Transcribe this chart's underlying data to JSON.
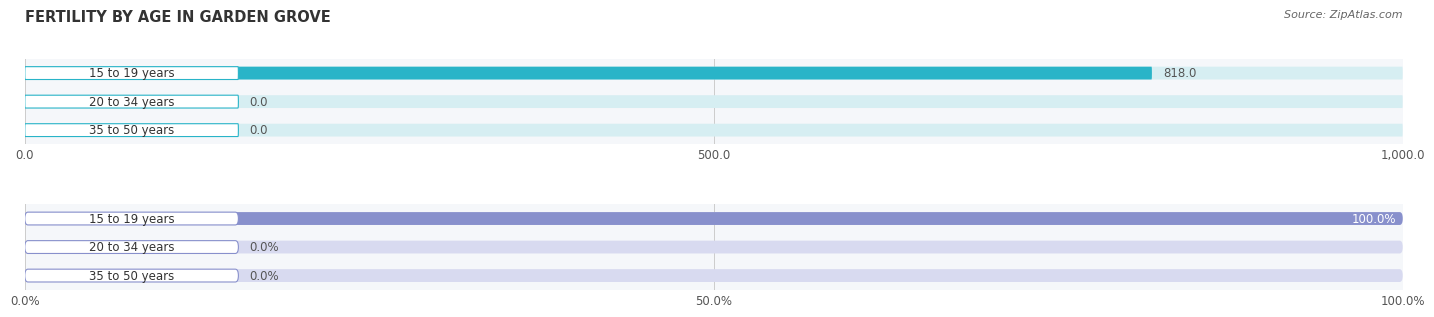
{
  "title": "FERTILITY BY AGE IN GARDEN GROVE",
  "source": "Source: ZipAtlas.com",
  "top_chart": {
    "categories": [
      "15 to 19 years",
      "20 to 34 years",
      "35 to 50 years"
    ],
    "values": [
      818.0,
      0.0,
      0.0
    ],
    "xlim": [
      0,
      1000
    ],
    "xticks": [
      0.0,
      500.0,
      1000.0
    ],
    "xticklabels": [
      "0.0",
      "500.0",
      "1,000.0"
    ],
    "bar_color": "#29b4c8",
    "bar_bg_color": "#d6eef2",
    "pill_bg_color": "#ffffff",
    "pill_border_color": "#29b4c8",
    "bar_height": 0.45
  },
  "bottom_chart": {
    "categories": [
      "15 to 19 years",
      "20 to 34 years",
      "35 to 50 years"
    ],
    "values": [
      100.0,
      0.0,
      0.0
    ],
    "xlim": [
      0,
      100
    ],
    "xticks": [
      0.0,
      50.0,
      100.0
    ],
    "xticklabels": [
      "0.0%",
      "50.0%",
      "100.0%"
    ],
    "bar_color": "#8890cc",
    "bar_bg_color": "#d8daf0",
    "pill_bg_color": "#ffffff",
    "pill_border_color": "#8890cc",
    "bar_height": 0.45
  },
  "title_fontsize": 10.5,
  "source_fontsize": 8,
  "label_fontsize": 8.5,
  "value_fontsize": 8.5,
  "title_color": "#333333",
  "source_color": "#666666",
  "label_color": "#333333",
  "value_color_inside": "#ffffff",
  "value_color_outside": "#555555",
  "bg_color": "#ffffff",
  "panel_bg_color": "#f5f7fa",
  "grid_color": "#cccccc"
}
